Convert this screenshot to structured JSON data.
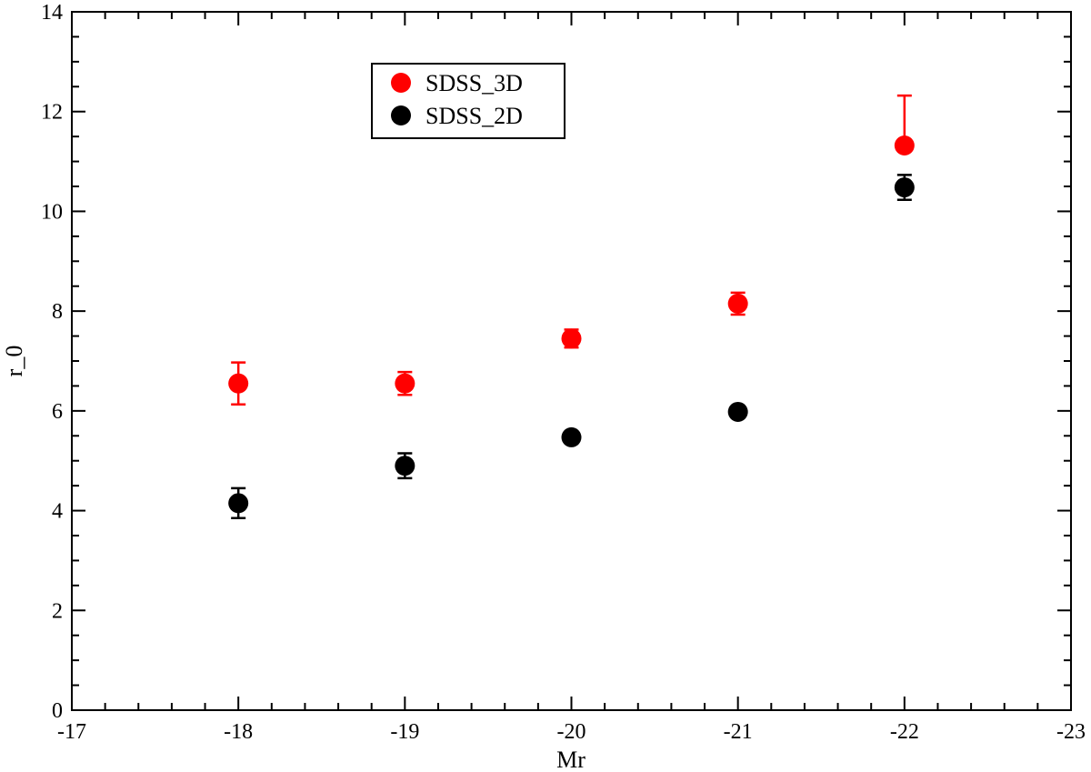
{
  "chart_data": {
    "type": "scatter",
    "title": "",
    "xlabel": "Mr",
    "ylabel": "r_0",
    "xlim": [
      -17,
      -23
    ],
    "ylim": [
      0,
      14
    ],
    "x_reversed": true,
    "grid": false,
    "legend_position": "top-center",
    "x_ticks": [
      "-17",
      "-18",
      "-19",
      "-20",
      "-21",
      "-22",
      "-23"
    ],
    "y_ticks": [
      "0",
      "2",
      "4",
      "6",
      "8",
      "10",
      "12",
      "14"
    ],
    "series": [
      {
        "name": "SDSS_3D",
        "color": "#ff0000",
        "points": [
          {
            "x": -18,
            "y": 6.55,
            "err_low": 0.42,
            "err_high": 0.42
          },
          {
            "x": -19,
            "y": 6.55,
            "err_low": 0.23,
            "err_high": 0.23
          },
          {
            "x": -20,
            "y": 7.45,
            "err_low": 0.18,
            "err_high": 0.18
          },
          {
            "x": -21,
            "y": 8.15,
            "err_low": 0.22,
            "err_high": 0.22
          },
          {
            "x": -22,
            "y": 11.32,
            "err_low": 0.0,
            "err_high": 1.0
          }
        ]
      },
      {
        "name": "SDSS_2D",
        "color": "#000000",
        "points": [
          {
            "x": -18,
            "y": 4.15,
            "err_low": 0.3,
            "err_high": 0.3
          },
          {
            "x": -19,
            "y": 4.9,
            "err_low": 0.25,
            "err_high": 0.25
          },
          {
            "x": -20,
            "y": 5.47,
            "err_low": 0.1,
            "err_high": 0.1
          },
          {
            "x": -21,
            "y": 5.98,
            "err_low": 0.0,
            "err_high": 0.0
          },
          {
            "x": -22,
            "y": 10.48,
            "err_low": 0.25,
            "err_high": 0.25
          }
        ]
      }
    ]
  }
}
